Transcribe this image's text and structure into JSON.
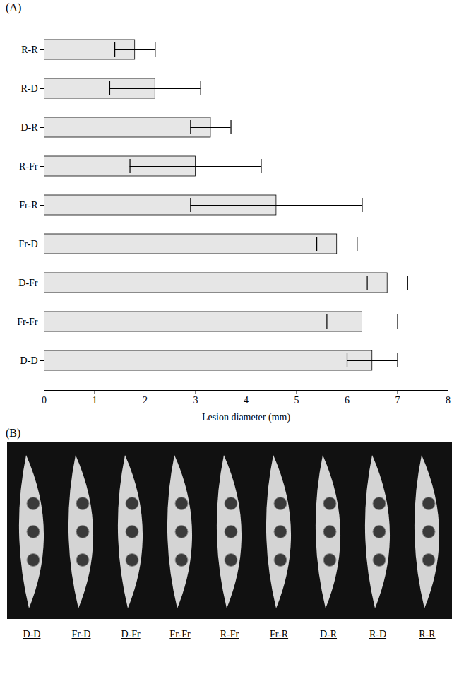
{
  "chart_data": {
    "type": "bar",
    "orientation": "horizontal",
    "panel_label": "(A)",
    "categories": [
      "R-R",
      "R-D",
      "D-R",
      "R-Fr",
      "Fr-R",
      "Fr-D",
      "D-Fr",
      "Fr-Fr",
      "D-D"
    ],
    "values": [
      1.8,
      2.2,
      3.3,
      3.0,
      4.6,
      5.8,
      6.8,
      6.3,
      6.5
    ],
    "errors": [
      0.4,
      0.9,
      0.4,
      1.3,
      1.7,
      0.4,
      0.4,
      0.7,
      0.5
    ],
    "color": "#e6e6e6",
    "xlabel": "Lesion diameter (mm)",
    "xlim": [
      0,
      8
    ],
    "xticks": [
      0,
      1,
      2,
      3,
      4,
      5,
      6,
      7,
      8
    ]
  },
  "photo": {
    "panel_label": "(B)",
    "labels": [
      "D-D",
      "Fr-D",
      "D-Fr",
      "Fr-Fr",
      "R-Fr",
      "Fr-R",
      "D-R",
      "R-D",
      "R-R"
    ]
  }
}
